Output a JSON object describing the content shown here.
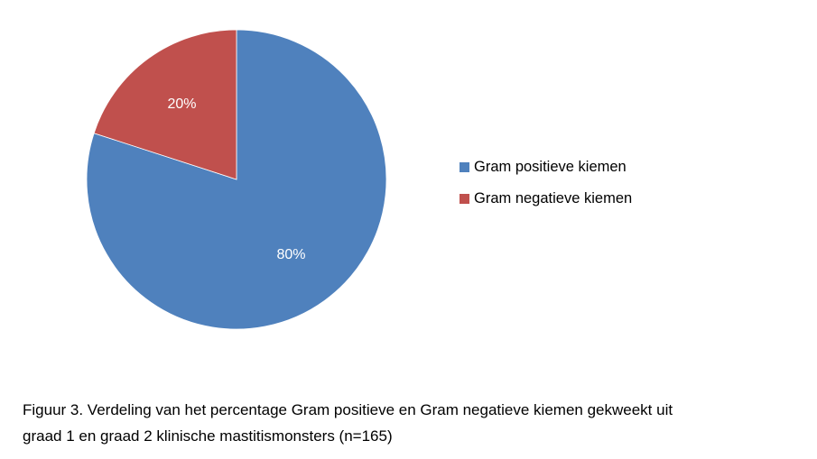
{
  "chart_data": {
    "type": "pie",
    "slices": [
      {
        "name": "Gram positieve kiemen",
        "value": 80,
        "label": "80%",
        "color": "#4F81BD"
      },
      {
        "name": "Gram negatieve kiemen",
        "value": 20,
        "label": "20%",
        "color": "#C0504D"
      }
    ],
    "legend_placement": "right",
    "start": "12 o'clock, clockwise"
  },
  "caption": {
    "line1": "Figuur 3. Verdeling van het percentage Gram positieve en Gram negatieve kiemen gekweekt uit",
    "line2": "graad 1 en graad 2 klinische mastitismonsters (n=165)"
  }
}
